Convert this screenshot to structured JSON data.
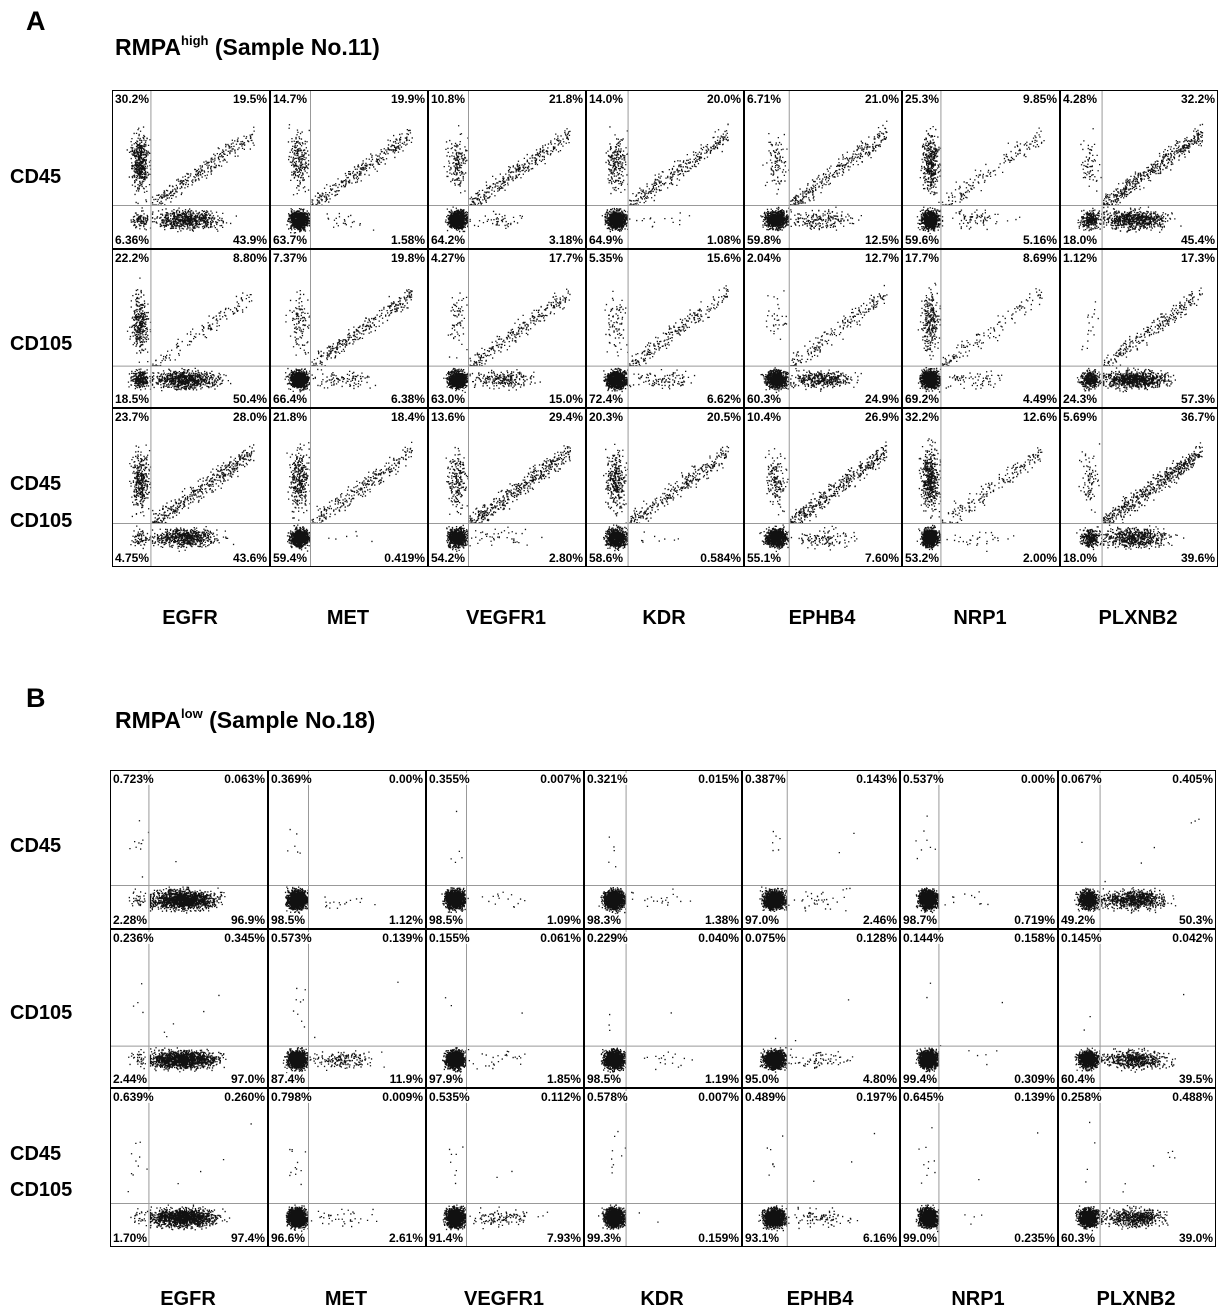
{
  "columns": [
    "EGFR",
    "MET",
    "VEGFR1",
    "KDR",
    "EPHB4",
    "NRP1",
    "PLXNB2"
  ],
  "panels": [
    {
      "label": "A",
      "title_main": "RMPA",
      "title_sup": "high",
      "title_rest": " (Sample No.11)",
      "rows": [
        {
          "label_lines": [
            "CD45"
          ],
          "cells": [
            {
              "tl": "30.2%",
              "tr": "19.5%",
              "bl": "6.36%",
              "br": "43.9%"
            },
            {
              "tl": "14.7%",
              "tr": "19.9%",
              "bl": "63.7%",
              "br": "1.58%"
            },
            {
              "tl": "10.8%",
              "tr": "21.8%",
              "bl": "64.2%",
              "br": "3.18%"
            },
            {
              "tl": "14.0%",
              "tr": "20.0%",
              "bl": "64.9%",
              "br": "1.08%"
            },
            {
              "tl": "6.71%",
              "tr": "21.0%",
              "bl": "59.8%",
              "br": "12.5%"
            },
            {
              "tl": "25.3%",
              "tr": "9.85%",
              "bl": "59.6%",
              "br": "5.16%"
            },
            {
              "tl": "4.28%",
              "tr": "32.2%",
              "bl": "18.0%",
              "br": "45.4%"
            }
          ]
        },
        {
          "label_lines": [
            "CD105"
          ],
          "cells": [
            {
              "tl": "22.2%",
              "tr": "8.80%",
              "bl": "18.5%",
              "br": "50.4%"
            },
            {
              "tl": "7.37%",
              "tr": "19.8%",
              "bl": "66.4%",
              "br": "6.38%"
            },
            {
              "tl": "4.27%",
              "tr": "17.7%",
              "bl": "63.0%",
              "br": "15.0%"
            },
            {
              "tl": "5.35%",
              "tr": "15.6%",
              "bl": "72.4%",
              "br": "6.62%"
            },
            {
              "tl": "2.04%",
              "tr": "12.7%",
              "bl": "60.3%",
              "br": "24.9%"
            },
            {
              "tl": "17.7%",
              "tr": "8.69%",
              "bl": "69.2%",
              "br": "4.49%"
            },
            {
              "tl": "1.12%",
              "tr": "17.3%",
              "bl": "24.3%",
              "br": "57.3%"
            }
          ]
        },
        {
          "label_lines": [
            "CD45",
            "CD105"
          ],
          "cells": [
            {
              "tl": "23.7%",
              "tr": "28.0%",
              "bl": "4.75%",
              "br": "43.6%"
            },
            {
              "tl": "21.8%",
              "tr": "18.4%",
              "bl": "59.4%",
              "br": "0.419%"
            },
            {
              "tl": "13.6%",
              "tr": "29.4%",
              "bl": "54.2%",
              "br": "2.80%"
            },
            {
              "tl": "20.3%",
              "tr": "20.5%",
              "bl": "58.6%",
              "br": "0.584%"
            },
            {
              "tl": "10.4%",
              "tr": "26.9%",
              "bl": "55.1%",
              "br": "7.60%"
            },
            {
              "tl": "32.2%",
              "tr": "12.6%",
              "bl": "53.2%",
              "br": "2.00%"
            },
            {
              "tl": "5.69%",
              "tr": "36.7%",
              "bl": "18.0%",
              "br": "39.6%"
            }
          ]
        }
      ]
    },
    {
      "label": "B",
      "title_main": "RMPA",
      "title_sup": "low",
      "title_rest": " (Sample No.18)",
      "rows": [
        {
          "label_lines": [
            "CD45"
          ],
          "cells": [
            {
              "tl": "0.723%",
              "tr": "0.063%",
              "bl": "2.28%",
              "br": "96.9%"
            },
            {
              "tl": "0.369%",
              "tr": "0.00%",
              "bl": "98.5%",
              "br": "1.12%"
            },
            {
              "tl": "0.355%",
              "tr": "0.007%",
              "bl": "98.5%",
              "br": "1.09%"
            },
            {
              "tl": "0.321%",
              "tr": "0.015%",
              "bl": "98.3%",
              "br": "1.38%"
            },
            {
              "tl": "0.387%",
              "tr": "0.143%",
              "bl": "97.0%",
              "br": "2.46%"
            },
            {
              "tl": "0.537%",
              "tr": "0.00%",
              "bl": "98.7%",
              "br": "0.719%"
            },
            {
              "tl": "0.067%",
              "tr": "0.405%",
              "bl": "49.2%",
              "br": "50.3%"
            }
          ]
        },
        {
          "label_lines": [
            "CD105"
          ],
          "cells": [
            {
              "tl": "0.236%",
              "tr": "0.345%",
              "bl": "2.44%",
              "br": "97.0%"
            },
            {
              "tl": "0.573%",
              "tr": "0.139%",
              "bl": "87.4%",
              "br": "11.9%"
            },
            {
              "tl": "0.155%",
              "tr": "0.061%",
              "bl": "97.9%",
              "br": "1.85%"
            },
            {
              "tl": "0.229%",
              "tr": "0.040%",
              "bl": "98.5%",
              "br": "1.19%"
            },
            {
              "tl": "0.075%",
              "tr": "0.128%",
              "bl": "95.0%",
              "br": "4.80%"
            },
            {
              "tl": "0.144%",
              "tr": "0.158%",
              "bl": "99.4%",
              "br": "0.309%"
            },
            {
              "tl": "0.145%",
              "tr": "0.042%",
              "bl": "60.4%",
              "br": "39.5%"
            }
          ]
        },
        {
          "label_lines": [
            "CD45",
            "CD105"
          ],
          "cells": [
            {
              "tl": "0.639%",
              "tr": "0.260%",
              "bl": "1.70%",
              "br": "97.4%"
            },
            {
              "tl": "0.798%",
              "tr": "0.009%",
              "bl": "96.6%",
              "br": "2.61%"
            },
            {
              "tl": "0.535%",
              "tr": "0.112%",
              "bl": "91.4%",
              "br": "7.93%"
            },
            {
              "tl": "0.578%",
              "tr": "0.007%",
              "bl": "99.3%",
              "br": "0.159%"
            },
            {
              "tl": "0.489%",
              "tr": "0.197%",
              "bl": "93.1%",
              "br": "6.16%"
            },
            {
              "tl": "0.645%",
              "tr": "0.139%",
              "bl": "99.0%",
              "br": "0.235%"
            },
            {
              "tl": "0.258%",
              "tr": "0.488%",
              "bl": "60.3%",
              "br": "39.0%"
            }
          ]
        }
      ]
    }
  ]
}
